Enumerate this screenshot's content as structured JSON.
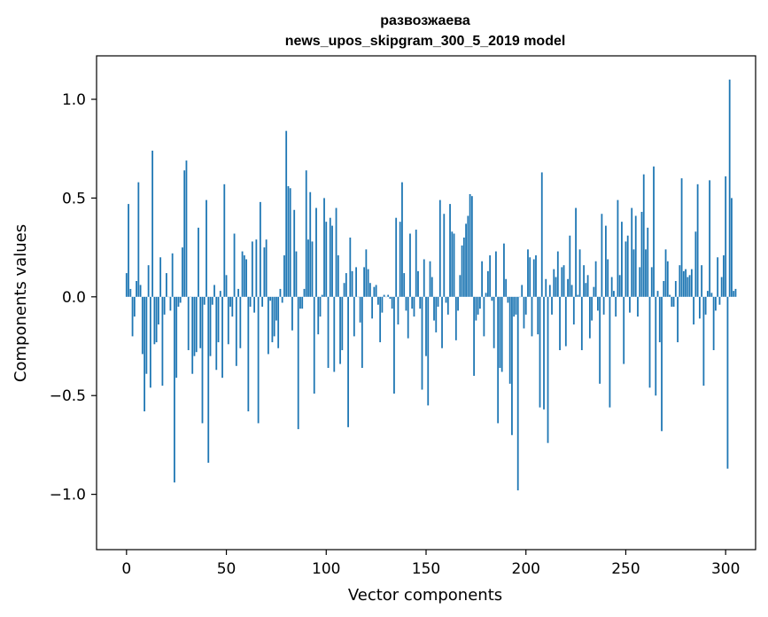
{
  "chart_data": {
    "type": "bar",
    "title_line1": "развозжаева",
    "title_line2": "news_upos_skipgram_300_5_2019 model",
    "xlabel": "Vector components",
    "ylabel": "Components values",
    "xlim": [
      -15,
      315
    ],
    "ylim": [
      -1.28,
      1.22
    ],
    "xticks": [
      0,
      50,
      100,
      150,
      200,
      250,
      300
    ],
    "xtick_labels": [
      "0",
      "50",
      "100",
      "150",
      "200",
      "250",
      "300"
    ],
    "yticks": [
      -1.0,
      -0.5,
      0.0,
      0.5,
      1.0
    ],
    "ytick_labels": [
      "−1.0",
      "−0.5",
      "0.0",
      "0.5",
      "1.0"
    ],
    "bar_color": "#1f77b4",
    "grid": false,
    "values": [
      0.12,
      0.47,
      0.04,
      -0.2,
      -0.1,
      0.08,
      0.58,
      0.06,
      -0.29,
      -0.58,
      -0.39,
      0.16,
      -0.46,
      0.74,
      -0.24,
      -0.23,
      -0.14,
      0.2,
      -0.45,
      -0.09,
      0.12,
      0.0,
      -0.07,
      0.22,
      -0.94,
      -0.41,
      -0.05,
      -0.03,
      0.25,
      0.64,
      0.69,
      -0.27,
      0.0,
      -0.39,
      -0.3,
      -0.28,
      0.35,
      -0.26,
      -0.64,
      -0.04,
      0.49,
      -0.84,
      -0.3,
      -0.04,
      0.06,
      -0.37,
      -0.23,
      0.03,
      -0.41,
      0.57,
      0.11,
      -0.24,
      -0.05,
      -0.1,
      0.32,
      -0.35,
      0.04,
      -0.26,
      0.23,
      0.21,
      0.19,
      -0.58,
      -0.05,
      0.28,
      -0.08,
      0.29,
      -0.64,
      0.48,
      -0.05,
      0.25,
      0.29,
      -0.29,
      -0.02,
      -0.23,
      -0.2,
      -0.12,
      -0.26,
      0.04,
      -0.03,
      0.21,
      0.84,
      0.56,
      0.55,
      -0.17,
      0.44,
      0.23,
      -0.67,
      -0.06,
      -0.06,
      0.04,
      0.64,
      0.29,
      0.53,
      0.28,
      -0.49,
      0.45,
      -0.19,
      -0.1,
      0.01,
      0.5,
      0.38,
      -0.36,
      0.4,
      0.36,
      -0.38,
      0.45,
      0.21,
      -0.34,
      -0.27,
      0.07,
      0.12,
      -0.66,
      0.3,
      0.13,
      -0.2,
      0.15,
      0.0,
      -0.13,
      -0.36,
      0.15,
      0.24,
      0.14,
      0.07,
      -0.11,
      0.05,
      0.06,
      -0.04,
      -0.23,
      -0.08,
      0.01,
      0.0,
      0.01,
      -0.01,
      -0.06,
      -0.49,
      0.4,
      -0.14,
      0.38,
      0.58,
      0.12,
      -0.07,
      -0.21,
      0.32,
      -0.06,
      -0.1,
      0.34,
      0.13,
      -0.06,
      -0.47,
      0.19,
      -0.3,
      -0.55,
      0.18,
      0.1,
      -0.12,
      -0.18,
      -0.05,
      0.49,
      -0.26,
      0.42,
      -0.03,
      -0.09,
      0.47,
      0.33,
      0.32,
      -0.22,
      -0.07,
      0.11,
      0.26,
      0.3,
      0.37,
      0.41,
      0.52,
      0.51,
      -0.4,
      -0.12,
      -0.09,
      -0.06,
      0.18,
      -0.2,
      0.02,
      0.13,
      0.21,
      -0.02,
      -0.26,
      0.23,
      -0.64,
      -0.36,
      -0.38,
      0.27,
      0.09,
      -0.03,
      -0.44,
      -0.7,
      -0.1,
      -0.09,
      -0.98,
      0.0,
      0.06,
      -0.16,
      -0.09,
      0.24,
      0.2,
      -0.2,
      0.19,
      0.21,
      -0.19,
      -0.56,
      0.63,
      -0.57,
      0.09,
      -0.74,
      0.06,
      -0.09,
      0.14,
      0.1,
      0.23,
      -0.27,
      0.15,
      0.16,
      -0.25,
      0.09,
      0.31,
      0.06,
      -0.14,
      0.45,
      0.01,
      0.24,
      -0.27,
      0.16,
      0.07,
      0.11,
      -0.21,
      -0.12,
      0.05,
      0.18,
      -0.07,
      -0.44,
      0.42,
      -0.09,
      0.36,
      0.19,
      -0.56,
      0.1,
      0.03,
      -0.1,
      0.49,
      0.11,
      0.38,
      -0.34,
      0.28,
      0.31,
      -0.08,
      0.45,
      0.24,
      0.41,
      -0.1,
      0.15,
      0.43,
      0.62,
      0.24,
      0.35,
      -0.46,
      0.15,
      0.66,
      -0.5,
      0.03,
      -0.23,
      -0.68,
      0.08,
      0.24,
      0.18,
      0.01,
      -0.05,
      -0.05,
      0.08,
      -0.23,
      0.16,
      0.6,
      0.13,
      0.14,
      0.1,
      0.11,
      0.14,
      -0.14,
      0.33,
      0.57,
      -0.11,
      0.16,
      -0.45,
      -0.09,
      0.03,
      0.59,
      0.02,
      -0.27,
      -0.07,
      0.2,
      -0.04,
      0.1,
      0.21,
      0.61,
      -0.87,
      1.1,
      0.5,
      0.03,
      0.04
    ]
  }
}
